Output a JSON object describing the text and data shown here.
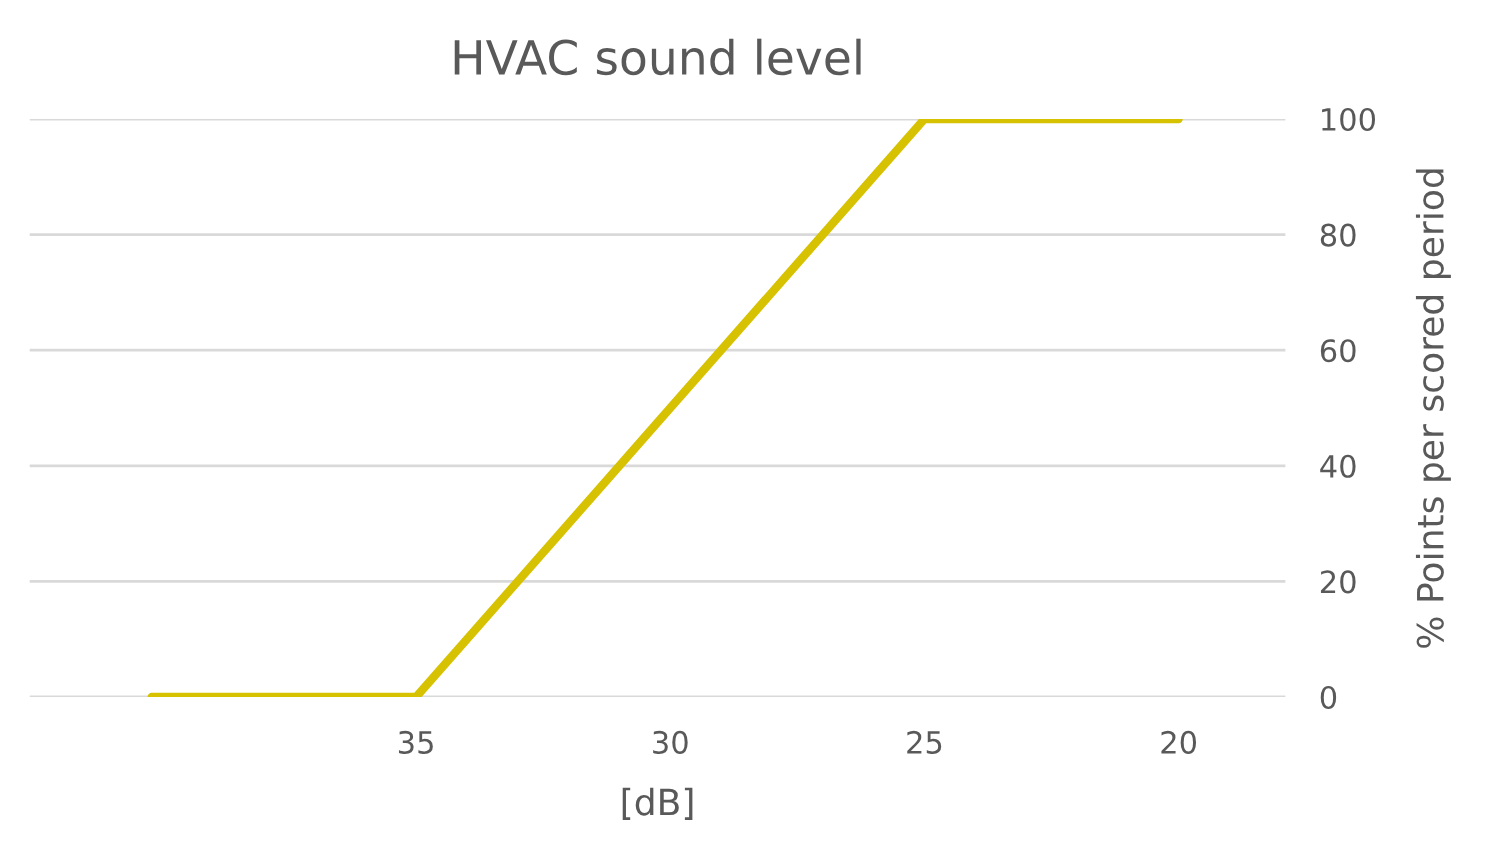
{
  "chart_data": {
    "type": "line",
    "title": "HVAC sound level",
    "xlabel": "[dB]",
    "ylabel": "% Points per scored period",
    "x": [
      40.2,
      35,
      25,
      20
    ],
    "series": [
      {
        "color": "#d6c200",
        "values": [
          0,
          0,
          100,
          100
        ]
      }
    ],
    "xlim": [
      42.6,
      17.9
    ],
    "xticks": [
      35,
      30,
      25,
      20
    ],
    "ylim": [
      0,
      100
    ],
    "yticks": [
      0,
      20,
      40,
      60,
      80,
      100
    ],
    "grid": "y",
    "marker": "none",
    "line_style": "solid"
  }
}
